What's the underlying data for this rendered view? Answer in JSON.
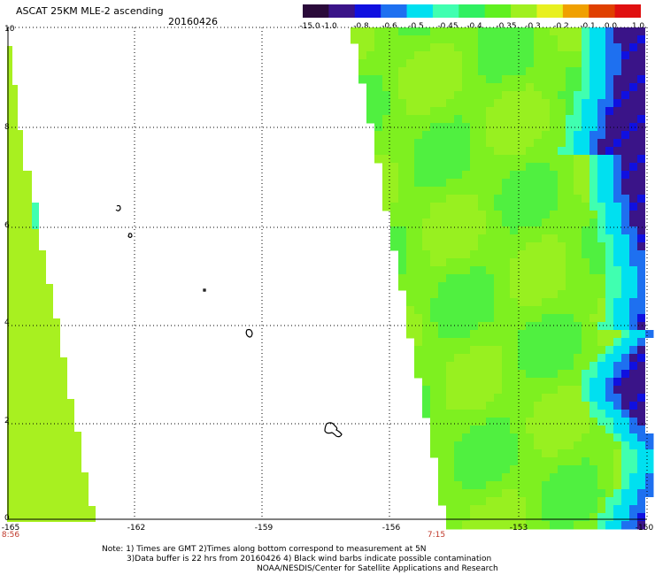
{
  "header": {
    "title": "ASCAT 25KM MLE-2 ascending",
    "date": "20160426"
  },
  "colorbar": {
    "labels": [
      "-15.0",
      "-1.0",
      "-0.8",
      "-0.6",
      "-0.5",
      "-0.45",
      "-0.4",
      "-0.35",
      "-0.3",
      "-0.2",
      "-0.1",
      "0.0",
      "1.0"
    ],
    "colors": [
      "#2a0a3a",
      "#3a1488",
      "#1010e0",
      "#1e70f0",
      "#00e0f0",
      "#40ffb0",
      "#30f060",
      "#60f020",
      "#a0f020",
      "#e8f020",
      "#f0a000",
      "#e04000",
      "#e01010"
    ]
  },
  "axes": {
    "y_ticks": [
      "0",
      "2",
      "4",
      "6",
      "8",
      "10"
    ],
    "x_ticks": [
      "-165",
      "-162",
      "-159",
      "-156",
      "-153",
      "-150"
    ],
    "y_range": [
      0,
      10
    ],
    "x_range": [
      -165,
      -150
    ],
    "grid": "dotted"
  },
  "swath_times": [
    "8:56",
    "7:15"
  ],
  "footer": {
    "note_line1": "Note: 1) Times are GMT 2)Times along bottom correspond to measurement at 5N",
    "note_line2": "3)Data buffer is 22 hrs from 20160426 4) Black wind barbs indicate possible contamination",
    "credit": "NOAA/NESDIS/Center for Satellite Applications and Research"
  },
  "colors": {
    "swath_base": "#7ef020",
    "left_swath": "#a8f020",
    "text_red": "#c0392b"
  }
}
